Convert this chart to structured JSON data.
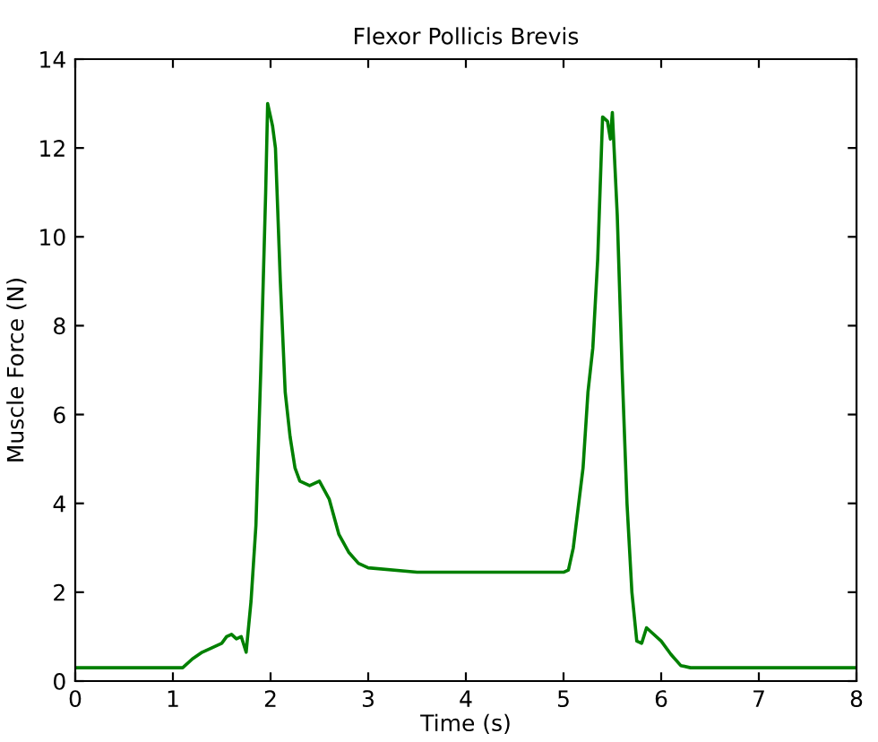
{
  "chart_data": {
    "type": "line",
    "title": "Flexor Pollicis Brevis",
    "xlabel": "Time (s)",
    "ylabel": "Muscle Force (N)",
    "xlim": [
      0,
      8
    ],
    "xticks": [
      0,
      1,
      2,
      3,
      4,
      5,
      6,
      7,
      8
    ],
    "ylim": [
      0,
      14
    ],
    "yticks": [
      0,
      2,
      4,
      6,
      8,
      10,
      12,
      14
    ],
    "grid": false,
    "legend": false,
    "series": [
      {
        "color": "#008000",
        "x": [
          0,
          1.1,
          1.2,
          1.3,
          1.4,
          1.5,
          1.55,
          1.6,
          1.65,
          1.7,
          1.75,
          1.8,
          1.85,
          1.9,
          1.95,
          1.97,
          2.0,
          2.02,
          2.05,
          2.1,
          2.15,
          2.2,
          2.25,
          2.3,
          2.4,
          2.5,
          2.6,
          2.7,
          2.8,
          2.9,
          3.0,
          3.5,
          4.0,
          4.5,
          5.0,
          5.05,
          5.1,
          5.2,
          5.25,
          5.3,
          5.35,
          5.4,
          5.45,
          5.48,
          5.5,
          5.55,
          5.6,
          5.65,
          5.7,
          5.75,
          5.8,
          5.85,
          5.9,
          6.0,
          6.1,
          6.2,
          6.3,
          7.0,
          8.0
        ],
        "values": [
          0.3,
          0.3,
          0.5,
          0.65,
          0.75,
          0.85,
          1.0,
          1.05,
          0.95,
          1.0,
          0.65,
          1.8,
          3.5,
          7.0,
          11.0,
          13.0,
          12.7,
          12.5,
          12.0,
          9.0,
          6.5,
          5.5,
          4.8,
          4.5,
          4.4,
          4.5,
          4.1,
          3.3,
          2.9,
          2.65,
          2.55,
          2.45,
          2.45,
          2.45,
          2.45,
          2.5,
          3.0,
          4.8,
          6.5,
          7.5,
          9.5,
          12.7,
          12.6,
          12.2,
          12.8,
          10.5,
          7.0,
          4.0,
          2.0,
          0.9,
          0.85,
          1.2,
          1.1,
          0.9,
          0.6,
          0.35,
          0.3,
          0.3,
          0.3
        ]
      }
    ]
  }
}
